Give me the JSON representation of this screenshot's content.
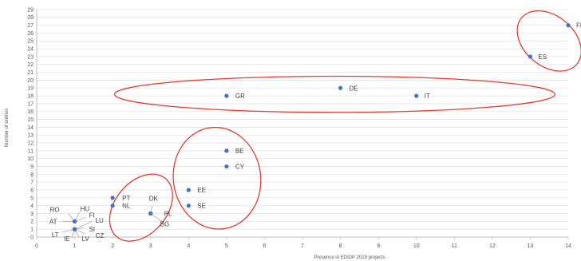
{
  "chart_data": {
    "type": "scatter",
    "xlabel": "Presence in EDIDP 2019 projects",
    "ylabel": "Number of entities",
    "xlim": [
      0,
      14
    ],
    "ylim": [
      0,
      29
    ],
    "x_ticks": [
      0,
      1,
      2,
      3,
      4,
      5,
      6,
      7,
      8,
      9,
      10,
      11,
      12,
      13,
      14
    ],
    "y_ticks": [
      0,
      1,
      2,
      3,
      4,
      5,
      6,
      7,
      8,
      9,
      10,
      11,
      12,
      13,
      14,
      15,
      16,
      17,
      18,
      19,
      20,
      21,
      22,
      23,
      24,
      25,
      26,
      27,
      28,
      29
    ],
    "grid": "horizontal",
    "marker_color": "#4472c4",
    "highlight_color": "#e03c31",
    "points": [
      {
        "label": "FR",
        "x": 14,
        "y": 27
      },
      {
        "label": "ES",
        "x": 13,
        "y": 23
      },
      {
        "label": "DE",
        "x": 8,
        "y": 19
      },
      {
        "label": "IT",
        "x": 10,
        "y": 18
      },
      {
        "label": "GR",
        "x": 5,
        "y": 18
      },
      {
        "label": "BE",
        "x": 5,
        "y": 11
      },
      {
        "label": "CY",
        "x": 5,
        "y": 9
      },
      {
        "label": "EE",
        "x": 4,
        "y": 6
      },
      {
        "label": "SE",
        "x": 4,
        "y": 4
      },
      {
        "label": "PL",
        "x": 3,
        "y": 3
      },
      {
        "label": "DK",
        "x": 3,
        "y": 3
      },
      {
        "label": "BG",
        "x": 3,
        "y": 3
      },
      {
        "label": "PT",
        "x": 2,
        "y": 5
      },
      {
        "label": "NL",
        "x": 2,
        "y": 4
      },
      {
        "label": "RO",
        "x": 1,
        "y": 2
      },
      {
        "label": "HU",
        "x": 1,
        "y": 2
      },
      {
        "label": "FI",
        "x": 1,
        "y": 2
      },
      {
        "label": "AT",
        "x": 1,
        "y": 2
      },
      {
        "label": "LU",
        "x": 1,
        "y": 1
      },
      {
        "label": "SI",
        "x": 1,
        "y": 1
      },
      {
        "label": "LT",
        "x": 1,
        "y": 1
      },
      {
        "label": "CZ",
        "x": 1,
        "y": 1
      },
      {
        "label": "IE",
        "x": 1,
        "y": 1
      },
      {
        "label": "LV",
        "x": 1,
        "y": 1
      }
    ]
  }
}
